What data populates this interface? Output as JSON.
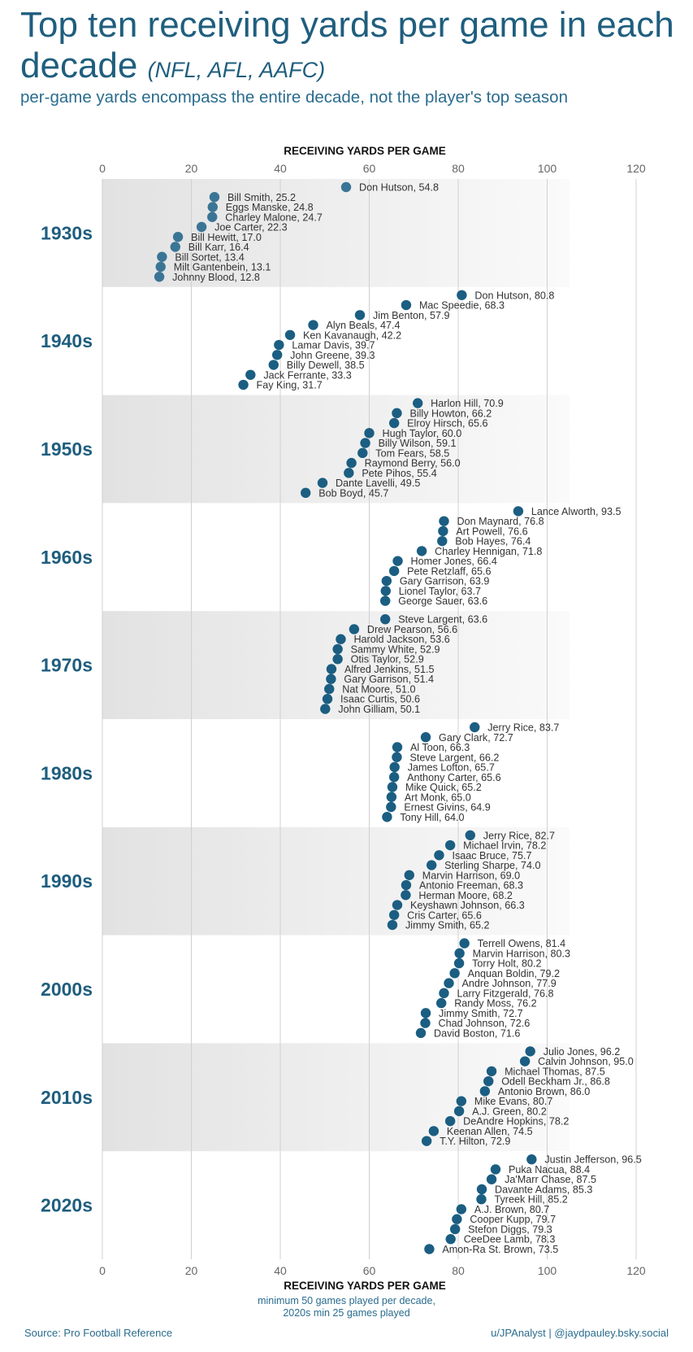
{
  "header": {
    "title_main": "Top ten receiving yards per game in each decade",
    "title_paren": "(NFL, AFL, AAFC)",
    "subtitle": "per-game yards encompass the entire decade, not the player's top season"
  },
  "footer": {
    "note_line1": "minimum 50 games played per decade,",
    "note_line2": "2020s min 25 games played",
    "source": "Source: Pro Football Reference",
    "credit": "u/JPAnalyst | @jaydpauley.bsky.social"
  },
  "colors": {
    "accent": "#1f5e7e",
    "dot": "#1b5e82",
    "dot_1930s": "#3b7595",
    "band_dark": "#e2e2e2",
    "band_light": "#fafafa"
  },
  "chart_data": {
    "type": "scatter",
    "title": "Top ten receiving yards per game in each decade",
    "xlabel": "RECEIVING YARDS PER GAME",
    "ylabel": "",
    "xlim": [
      0,
      120
    ],
    "xticks": [
      0,
      20,
      40,
      60,
      80,
      100,
      120
    ],
    "grid": true,
    "decades": [
      {
        "label": "1930s",
        "players": [
          {
            "name": "Don Hutson",
            "value": 54.8
          },
          {
            "name": "Bill Smith",
            "value": 25.2
          },
          {
            "name": "Eggs Manske",
            "value": 24.8
          },
          {
            "name": "Charley Malone",
            "value": 24.7
          },
          {
            "name": "Joe Carter",
            "value": 22.3
          },
          {
            "name": "Bill Hewitt",
            "value": 17.0
          },
          {
            "name": "Bill Karr",
            "value": 16.4
          },
          {
            "name": "Bill Sortet",
            "value": 13.4
          },
          {
            "name": "Milt Gantenbein",
            "value": 13.1
          },
          {
            "name": "Johnny Blood",
            "value": 12.8
          }
        ]
      },
      {
        "label": "1940s",
        "players": [
          {
            "name": "Don Hutson",
            "value": 80.8
          },
          {
            "name": "Mac Speedie",
            "value": 68.3
          },
          {
            "name": "Jim Benton",
            "value": 57.9
          },
          {
            "name": "Alyn Beals",
            "value": 47.4
          },
          {
            "name": "Ken Kavanaugh",
            "value": 42.2
          },
          {
            "name": "Lamar Davis",
            "value": 39.7
          },
          {
            "name": "John Greene",
            "value": 39.3
          },
          {
            "name": "Billy Dewell",
            "value": 38.5
          },
          {
            "name": "Jack Ferrante",
            "value": 33.3
          },
          {
            "name": "Fay King",
            "value": 31.7
          }
        ]
      },
      {
        "label": "1950s",
        "players": [
          {
            "name": "Harlon Hill",
            "value": 70.9
          },
          {
            "name": "Billy Howton",
            "value": 66.2
          },
          {
            "name": "Elroy Hirsch",
            "value": 65.6
          },
          {
            "name": "Hugh Taylor",
            "value": 60.0
          },
          {
            "name": "Billy Wilson",
            "value": 59.1
          },
          {
            "name": "Tom Fears",
            "value": 58.5
          },
          {
            "name": "Raymond Berry",
            "value": 56.0
          },
          {
            "name": "Pete Pihos",
            "value": 55.4
          },
          {
            "name": "Dante Lavelli",
            "value": 49.5
          },
          {
            "name": "Bob Boyd",
            "value": 45.7
          }
        ]
      },
      {
        "label": "1960s",
        "players": [
          {
            "name": "Lance Alworth",
            "value": 93.5
          },
          {
            "name": "Don Maynard",
            "value": 76.8
          },
          {
            "name": "Art Powell",
            "value": 76.6
          },
          {
            "name": "Bob Hayes",
            "value": 76.4
          },
          {
            "name": "Charley Hennigan",
            "value": 71.8
          },
          {
            "name": "Homer Jones",
            "value": 66.4
          },
          {
            "name": "Pete Retzlaff",
            "value": 65.6
          },
          {
            "name": "Gary Garrison",
            "value": 63.9
          },
          {
            "name": "Lionel Taylor",
            "value": 63.7
          },
          {
            "name": "George Sauer",
            "value": 63.6
          }
        ]
      },
      {
        "label": "1970s",
        "players": [
          {
            "name": "Steve Largent",
            "value": 63.6
          },
          {
            "name": "Drew Pearson",
            "value": 56.6
          },
          {
            "name": "Harold Jackson",
            "value": 53.6
          },
          {
            "name": "Sammy White",
            "value": 52.9
          },
          {
            "name": "Otis Taylor",
            "value": 52.9
          },
          {
            "name": "Alfred Jenkins",
            "value": 51.5
          },
          {
            "name": "Gary Garrison",
            "value": 51.4
          },
          {
            "name": "Nat Moore",
            "value": 51.0
          },
          {
            "name": "Isaac Curtis",
            "value": 50.6
          },
          {
            "name": "John Gilliam",
            "value": 50.1
          }
        ]
      },
      {
        "label": "1980s",
        "players": [
          {
            "name": "Jerry Rice",
            "value": 83.7
          },
          {
            "name": "Gary Clark",
            "value": 72.7
          },
          {
            "name": "Al Toon",
            "value": 66.3
          },
          {
            "name": "Steve Largent",
            "value": 66.2
          },
          {
            "name": "James Lofton",
            "value": 65.7
          },
          {
            "name": "Anthony Carter",
            "value": 65.6
          },
          {
            "name": "Mike Quick",
            "value": 65.2
          },
          {
            "name": "Art Monk",
            "value": 65.0
          },
          {
            "name": "Ernest Givins",
            "value": 64.9
          },
          {
            "name": "Tony Hill",
            "value": 64.0
          }
        ]
      },
      {
        "label": "1990s",
        "players": [
          {
            "name": "Jerry Rice",
            "value": 82.7
          },
          {
            "name": "Michael Irvin",
            "value": 78.2
          },
          {
            "name": "Isaac Bruce",
            "value": 75.7
          },
          {
            "name": "Sterling Sharpe",
            "value": 74.0
          },
          {
            "name": "Marvin Harrison",
            "value": 69.0
          },
          {
            "name": "Antonio Freeman",
            "value": 68.3
          },
          {
            "name": "Herman Moore",
            "value": 68.2
          },
          {
            "name": "Keyshawn Johnson",
            "value": 66.3
          },
          {
            "name": "Cris Carter",
            "value": 65.6
          },
          {
            "name": "Jimmy Smith",
            "value": 65.2
          }
        ]
      },
      {
        "label": "2000s",
        "players": [
          {
            "name": "Terrell Owens",
            "value": 81.4
          },
          {
            "name": "Marvin Harrison",
            "value": 80.3
          },
          {
            "name": "Torry Holt",
            "value": 80.2
          },
          {
            "name": "Anquan Boldin",
            "value": 79.2
          },
          {
            "name": "Andre Johnson",
            "value": 77.9
          },
          {
            "name": "Larry Fitzgerald",
            "value": 76.8
          },
          {
            "name": "Randy Moss",
            "value": 76.2
          },
          {
            "name": "Jimmy Smith",
            "value": 72.7
          },
          {
            "name": "Chad Johnson",
            "value": 72.6
          },
          {
            "name": "David Boston",
            "value": 71.6
          }
        ]
      },
      {
        "label": "2010s",
        "players": [
          {
            "name": "Julio Jones",
            "value": 96.2
          },
          {
            "name": "Calvin Johnson",
            "value": 95.0
          },
          {
            "name": "Michael Thomas",
            "value": 87.5
          },
          {
            "name": "Odell Beckham Jr.",
            "value": 86.8
          },
          {
            "name": "Antonio Brown",
            "value": 86.0
          },
          {
            "name": "Mike Evans",
            "value": 80.7
          },
          {
            "name": "A.J. Green",
            "value": 80.2
          },
          {
            "name": "DeAndre Hopkins",
            "value": 78.2
          },
          {
            "name": "Keenan Allen",
            "value": 74.5
          },
          {
            "name": "T.Y. Hilton",
            "value": 72.9
          }
        ]
      },
      {
        "label": "2020s",
        "players": [
          {
            "name": "Justin Jefferson",
            "value": 96.5
          },
          {
            "name": "Puka Nacua",
            "value": 88.4
          },
          {
            "name": "Ja'Marr Chase",
            "value": 87.5
          },
          {
            "name": "Davante Adams",
            "value": 85.3
          },
          {
            "name": "Tyreek Hill",
            "value": 85.2
          },
          {
            "name": "A.J. Brown",
            "value": 80.7
          },
          {
            "name": "Cooper Kupp",
            "value": 79.7
          },
          {
            "name": "Stefon Diggs",
            "value": 79.3
          },
          {
            "name": "CeeDee Lamb",
            "value": 78.3
          },
          {
            "name": "Amon-Ra St. Brown",
            "value": 73.5
          }
        ]
      }
    ]
  }
}
